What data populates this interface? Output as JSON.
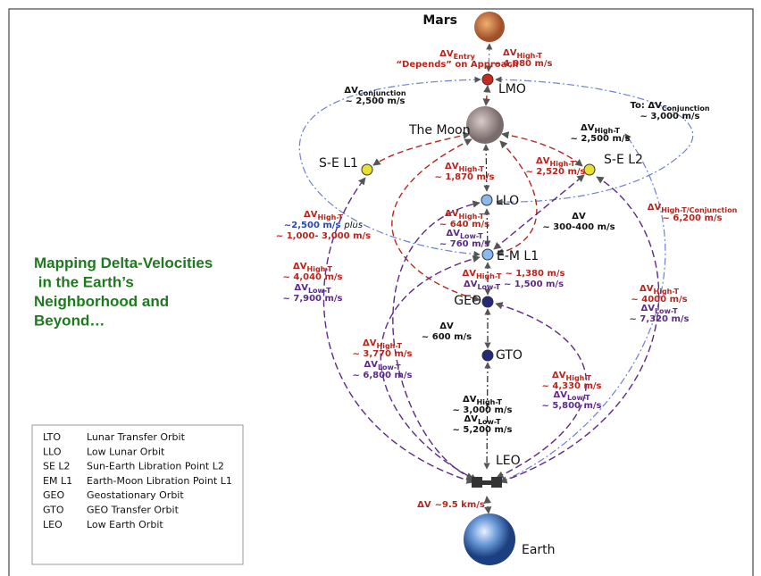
{
  "title": {
    "lines": [
      "Mapping Delta-Velocities",
      " in the Earth’s",
      "Neighborhood and",
      "Beyond…"
    ]
  },
  "nodes": [
    {
      "label": "Mars"
    },
    {
      "label": "LMO"
    },
    {
      "label": "The Moon"
    },
    {
      "label": "S-E L1"
    },
    {
      "label": "S-E L2"
    },
    {
      "label": "LLO"
    },
    {
      "label": "E-M L1"
    },
    {
      "label": "GEO"
    },
    {
      "label": "GTO"
    },
    {
      "label": "LEO"
    },
    {
      "label": "Earth"
    }
  ],
  "labels": [
    {
      "dv": "ΔV",
      "sub": "Entry",
      "value": "“Depends” on Approach"
    },
    {
      "dv": "ΔV",
      "sub": "High-T",
      "value": "~ 4,080 m/s"
    },
    {
      "dv": "ΔV",
      "sub": "Conjunction",
      "value": "~ 2,500 m/s"
    },
    {
      "dv": "To: ΔV",
      "sub": "Conjunction",
      "value": "~ 3,000 m/s"
    },
    {
      "dv": "ΔV",
      "sub": "High-T",
      "value": "~ 2,500 m/s"
    },
    {
      "dv": "ΔV",
      "sub": "High-T",
      "value": "~ 1,870 m/s"
    },
    {
      "dv": "ΔV",
      "sub": "High-T",
      "value": "~ 2,520 m/s"
    },
    {
      "dv": "ΔV",
      "sub": "High-T",
      "value": "~2,500 m/s",
      "note": "plus",
      "value2": "~ 1,000- 3,000 m/s"
    },
    {
      "dv": "ΔV",
      "sub": "High-T",
      "value": "~ 640 m/s"
    },
    {
      "dv": "ΔV",
      "sub": "Low-T",
      "value": "~ 760 m/s"
    },
    {
      "dv": "ΔV",
      "value": "~ 300-400 m/s"
    },
    {
      "dv": "ΔV",
      "sub": "High-T/Conjunction",
      "value": "~ 6,200 m/s"
    },
    {
      "dv": "ΔV",
      "sub": "High-T",
      "value": "~ 1,380 m/s"
    },
    {
      "dv": "ΔV",
      "sub": "Low-T",
      "value": "~ 1,500 m/s"
    },
    {
      "dv": "ΔV",
      "sub": "High-T",
      "value": "~ 4,040 m/s"
    },
    {
      "dv": "ΔV",
      "sub": "Low-T",
      "value": "~ 7,900 m/s"
    },
    {
      "dv": "ΔV",
      "sub": "High-T",
      "value": "~ 4000 m/s"
    },
    {
      "dv": "ΔV",
      "sub": "Low-T",
      "value": "~ 7,320 m/s"
    },
    {
      "dv": "ΔV",
      "value": "~ 600 m/s"
    },
    {
      "dv": "ΔV",
      "sub": "High-T",
      "value": "~ 3,770 m/s"
    },
    {
      "dv": "ΔV",
      "sub": "Low-T",
      "value": "~ 6,800 m/s"
    },
    {
      "dv": "ΔV",
      "sub": "High-T",
      "value": "~ 4,330 m/s"
    },
    {
      "dv": "ΔV",
      "sub": "Low-T",
      "value": "~ 5,800 m/s"
    },
    {
      "dv": "ΔV",
      "sub": "High-T",
      "value": "~ 3,000 m/s"
    },
    {
      "dv": "ΔV",
      "sub": "Low-T",
      "value": "~ 5,200 m/s"
    },
    {
      "dv": "ΔV",
      "value": "~9.5 km/s"
    }
  ],
  "legend": {
    "rows": [
      [
        "LTO",
        "Lunar Transfer Orbit"
      ],
      [
        "LLO",
        "Low Lunar Orbit"
      ],
      [
        "SE L2",
        "Sun-Earth Libration Point L2"
      ],
      [
        "EM L1",
        "Earth-Moon Libration Point L1"
      ],
      [
        "GEO",
        "Geostationary Orbit"
      ],
      [
        "GTO",
        "GEO Transfer Orbit"
      ],
      [
        "LEO",
        "Low Earth Orbit"
      ]
    ]
  }
}
